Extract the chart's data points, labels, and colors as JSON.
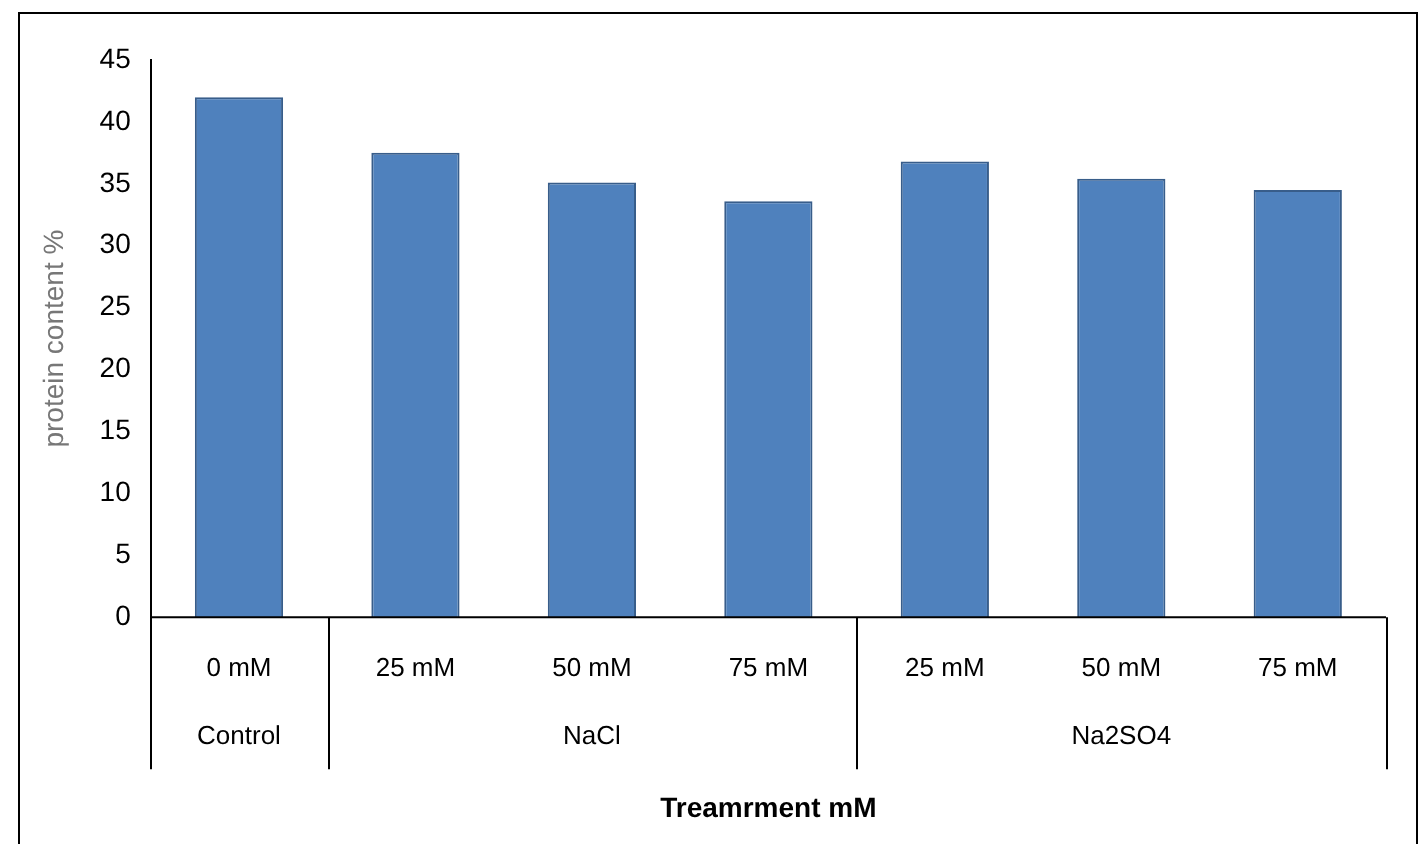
{
  "chart_data": {
    "type": "bar",
    "categories": [
      "0 mM",
      "25 mM",
      "50 mM",
      "75 mM",
      "25 mM",
      "50 mM",
      "75 mM"
    ],
    "values": [
      42.0,
      37.5,
      35.1,
      33.6,
      36.8,
      35.4,
      34.5
    ],
    "color": "#4f81bd",
    "ylim": [
      0,
      45
    ],
    "yticks": [
      0,
      5,
      10,
      15,
      20,
      25,
      30,
      35,
      40,
      45
    ],
    "ylabel": "protein content %",
    "xlabel": "Treamrment mM",
    "annotations": [
      "Control",
      "NaCl",
      "Na2SO4"
    ],
    "grid": false,
    "legend": false
  }
}
